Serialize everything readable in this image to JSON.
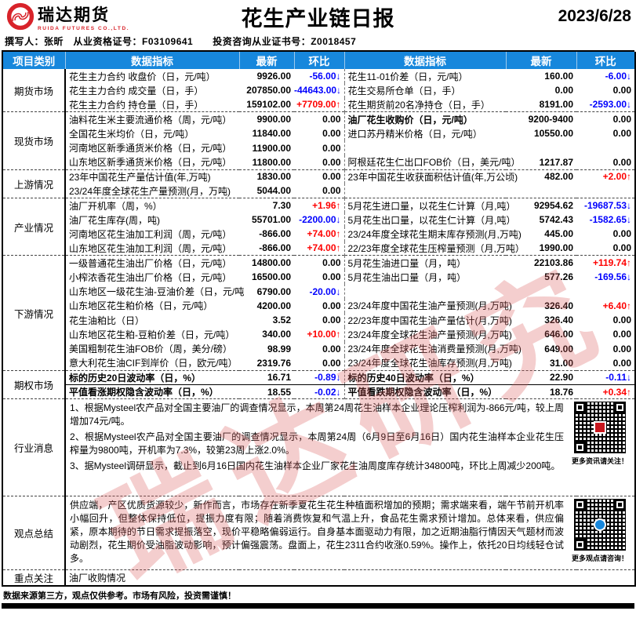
{
  "header": {
    "logo_text": "瑞达期货",
    "logo_sub": "RUIDA FUTURES CO.,LTD.",
    "title": "花生产业链日报",
    "date": "2023/6/28",
    "meta": "撰写人：张昕　从业资格证号：F03109641　　投资咨询从业证书号：Z0018457"
  },
  "colors": {
    "header_blue": "#1787dc",
    "up_red": "#fe0000",
    "down_blue": "#0000fe",
    "brand_red": "#d8232a"
  },
  "watermark": {
    "text": "瑞达研究"
  },
  "table": {
    "columns": [
      "项目类别",
      "数据指标",
      "最新",
      "环比",
      "数据指标",
      "最新",
      "环比"
    ],
    "sections": [
      {
        "id": "futures",
        "category": "期货市场",
        "rows": [
          {
            "l1": "花生主力合约 收盘价（日，元/吨）",
            "v1": "9926.00",
            "d1": "-56.00↓",
            "l2": "花生11-01价差（日，元/吨）",
            "v2": "160.00",
            "d2": "-6.00↓"
          },
          {
            "l1": "花生主力合约 成交量（日，手）",
            "v1": "207850.00",
            "d1": "-44643.00↓",
            "l2": "花生交易所仓单（日，手）",
            "v2": "0.00",
            "d2": "0.00"
          },
          {
            "l1": "花生主力合约 持仓量（日，手）",
            "v1": "159102.00",
            "d1": "+7709.00↑",
            "l2": "花生期货前20名净持仓（日，手）",
            "v2": "8191.00",
            "d2": "-2593.00↓"
          }
        ]
      },
      {
        "id": "spot",
        "category": "现货市场",
        "rows": [
          {
            "l1": "油料花生米主要流通价格（周，元/吨）",
            "v1": "9900.00",
            "d1": "0.00",
            "l2": "油厂花生收购价（日，元/吨）",
            "b2": true,
            "v2": "9200-9400",
            "d2": "0.00"
          },
          {
            "l1": "全国花生米均价（日，元/吨）",
            "v1": "11840.00",
            "d1": "0.00",
            "l2": "进口苏丹精米价格（日，元/吨）",
            "v2": "10550.00",
            "d2": "0.00"
          },
          {
            "l1": "河南地区新季通货米价格（日，元/吨）",
            "v1": "11900.00",
            "d1": "0.00",
            "l2": "",
            "v2": "",
            "d2": ""
          },
          {
            "l1": "山东地区新季通货米价格（日，元/吨）",
            "v1": "11800.00",
            "d1": "0.00",
            "l2": "阿根廷花生仁出口FOB价（日，美元/吨）",
            "v2": "1217.87",
            "d2": "0.00"
          }
        ]
      },
      {
        "id": "upstream",
        "category": "上游情况",
        "rows": [
          {
            "l1": "23年中国花生产量估计值(年,万吨)",
            "v1": "1830.00",
            "d1": "0.00",
            "l2": "23年中国花生收获面积估计值(年,万公顷)",
            "v2": "482.00",
            "d2": "+2.00↑"
          },
          {
            "l1": "23/24年度全球花生产量预测(月，万吨)",
            "v1": "5044.00",
            "d1": "0.00",
            "l2": "",
            "v2": "",
            "d2": ""
          }
        ]
      },
      {
        "id": "industry",
        "category": "产业情况",
        "rows": [
          {
            "l1": "油厂开机率（周，%）",
            "v1": "7.30",
            "d1": "+1.96↑",
            "l2": "5月花生进口量，以花生仁计算（月,吨）",
            "v2": "92954.62",
            "d2": "-19687.53↓"
          },
          {
            "l1": "油厂花生库存(周，吨)",
            "v1": "55701.00",
            "d1": "-2200.00↓",
            "l2": "5月花生出口量，以花生仁计算（月,吨）",
            "v2": "5742.43",
            "d2": "-1582.65↓"
          },
          {
            "l1": "河南地区花生油加工利润（周，元/吨）",
            "v1": "-866.00",
            "d1": "+74.00↑",
            "l2": "23/24年度全球花生期末库存预测(月,万吨)",
            "v2": "445.00",
            "d2": "0.00"
          },
          {
            "l1": "山东地区花生油加工利润（周，元/吨）",
            "v1": "-866.00",
            "d1": "+74.00↑",
            "l2": "22/23年度全球花生压榨量预测（月,万吨）",
            "v2": "1990.00",
            "d2": "0.00"
          }
        ]
      },
      {
        "id": "downstream",
        "category": "下游情况",
        "rows": [
          {
            "l1": "一级普通花生油出厂价格（日，元/吨）",
            "v1": "14800.00",
            "d1": "0.00",
            "l2": "5月花生油进口量（月，吨）",
            "v2": "22103.86",
            "d2": "+119.74↑"
          },
          {
            "l1": "小榨浓香花生油出厂价格（日，元/吨）",
            "v1": "16500.00",
            "d1": "0.00",
            "l2": "5月花生油出口量（月，吨）",
            "v2": "577.26",
            "d2": "-169.56↓"
          },
          {
            "l1": "山东地区一级花生油-豆油价差（日，元/吨",
            "v1": "6790.00",
            "d1": "-20.00↓",
            "l2": "",
            "v2": "",
            "d2": ""
          },
          {
            "l1": "山东地区花生粕价格（日，元/吨）",
            "v1": "4200.00",
            "d1": "0.00",
            "l2": "23/24年度中国花生油产量预测(月,万吨)",
            "v2": "326.40",
            "d2": "+6.40↑"
          },
          {
            "l1": "花生油粕比（日）",
            "v1": "3.52",
            "d1": "0.00",
            "l2": "22/23年度中国花生油产量估计(月,万吨)",
            "v2": "326.40",
            "d2": "0.00"
          },
          {
            "l1": "山东地区花生粕-豆粕价差（日，元/吨）",
            "v1": "340.00",
            "d1": "+10.00↑",
            "l2": "23/24年度全球花生油产量预测(月,万吨)",
            "v2": "646.00",
            "d2": "0.00"
          },
          {
            "l1": "美国粗制花生油FOB价（周，美分/磅）",
            "v1": "98.99",
            "d1": "0.00",
            "l2": "23/24年度全球花生油消费量预测(月,万吨)",
            "v2": "649.00",
            "d2": "0.00"
          },
          {
            "l1": "意大利花生油CIF到岸价（日，欧元/吨）",
            "v1": "2319.76",
            "d1": "0.00",
            "l2": "23/24年度全球花生油库存预测(月,万吨)",
            "v2": "31.00",
            "d2": "0.00"
          }
        ]
      },
      {
        "id": "options",
        "category": "期权市场",
        "rows": [
          {
            "l1": "标的历史20日波动率（日，%）",
            "b1": true,
            "v1": "16.71",
            "d1": "-0.89↓",
            "l2": "标的历史40日波动率（日，%）",
            "b2": true,
            "v2": "22.90",
            "d2": "-0.11↓"
          },
          {
            "l1": "平值看涨期权隐含波动率（日，%）",
            "b1": true,
            "v1": "18.55",
            "d1": "-0.02↓",
            "l2": "平值看跌期权隐含波动率（日，%）",
            "b2": true,
            "v2": "18.76",
            "d2": "+0.34↑"
          }
        ]
      }
    ]
  },
  "news": {
    "category": "行业消息",
    "items": [
      "1、根据Mysteel农产品对全国主要油厂的调查情况显示，本周第24周花生油样本企业理论压榨利润为-866元/吨，较上周增加74元/吨。",
      "2、根据Mysteel农产品对全国主要油厂的调查情况显示，本周第24周（6月9日至6月16日）国内花生油样本企业花生压榨量为9800吨，开机率为7.3%，较第23周上涨2.0%。",
      "3、据Mysteel调研显示，截止到6月16日国内花生油样本企业厂家花生油周度库存统计34800吨，环比上周减少200吨。"
    ],
    "qr_caption": "更多资讯请关注！"
  },
  "summary": {
    "category": "观点总结",
    "text": "供应端，产区优质货源较少，新作而言，市场存在新季夏花生花生种植面积增加的预期；需求端来看，端午节前开机率小幅回升，但整体保持低位，提振力度有限；随着消费恢复和气温上升，食品花生需求预计增加。总体来看，供应偏紧，原本期待的节日需求提振落空，现价平稳略偏弱运行。自身基本面驱动力有限，加之近期油脂行情因天气题材而波动剧烈，花生期价受油脂波动影响，预计偏强震荡。盘面上，花生2311合约收涨0.59%。操作上，依托20日均线轻仓试多。",
    "qr_caption": "更多观点请咨询！"
  },
  "focus": {
    "category": "重点关注",
    "text": "油厂收购情况"
  },
  "footer": {
    "disclaimer": "数据来源第三方，观点仅供参考。市场有风险，投资需谨慎！"
  }
}
